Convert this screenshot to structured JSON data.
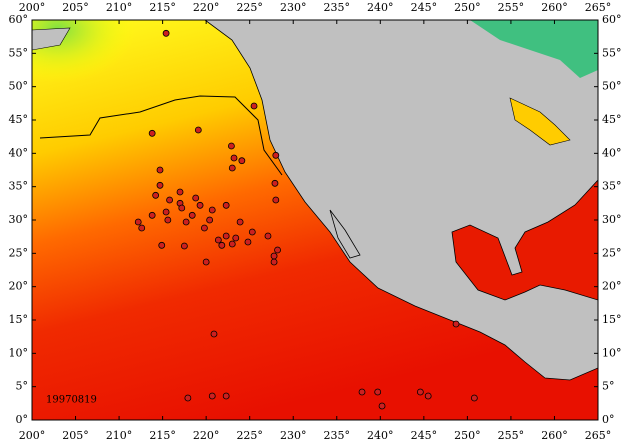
{
  "chart_data": {
    "type": "scatter",
    "label": "19970819",
    "xlim": [
      200,
      265
    ],
    "ylim": [
      0,
      60
    ],
    "xticks": [
      {
        "value": 200,
        "label": "200°"
      },
      {
        "value": 205,
        "label": "205°"
      },
      {
        "value": 210,
        "label": "210°"
      },
      {
        "value": 215,
        "label": "215°"
      },
      {
        "value": 220,
        "label": "220°"
      },
      {
        "value": 225,
        "label": "225°"
      },
      {
        "value": 230,
        "label": "230°"
      },
      {
        "value": 235,
        "label": "235°"
      },
      {
        "value": 240,
        "label": "240°"
      },
      {
        "value": 245,
        "label": "245°"
      },
      {
        "value": 250,
        "label": "250°"
      },
      {
        "value": 255,
        "label": "255°"
      },
      {
        "value": 260,
        "label": "260°"
      },
      {
        "value": 265,
        "label": "265°"
      }
    ],
    "yticks": [
      {
        "value": 0,
        "label": "0°"
      },
      {
        "value": 5,
        "label": "5°"
      },
      {
        "value": 10,
        "label": "10°"
      },
      {
        "value": 15,
        "label": "15°"
      },
      {
        "value": 20,
        "label": "20°"
      },
      {
        "value": 25,
        "label": "25°"
      },
      {
        "value": 30,
        "label": "30°"
      },
      {
        "value": 35,
        "label": "35°"
      },
      {
        "value": 40,
        "label": "40°"
      },
      {
        "value": 45,
        "label": "45°"
      },
      {
        "value": 50,
        "label": "50°"
      },
      {
        "value": 55,
        "label": "55°"
      },
      {
        "value": 60,
        "label": "60°"
      }
    ],
    "color": "#cc2020",
    "x": [
      215.4,
      213.8,
      219.1,
      225.5,
      222.9,
      223.2,
      224.1,
      228.0,
      223.0,
      227.9,
      214.7,
      214.7,
      217.0,
      214.2,
      215.8,
      217.0,
      218.8,
      219.3,
      222.3,
      212.2,
      213.8,
      215.4,
      217.2,
      218.4,
      220.7,
      220.4,
      223.9,
      228.0,
      212.6,
      215.6,
      217.7,
      219.8,
      221.4,
      222.3,
      223.4,
      224.8,
      225.3,
      227.1,
      228.2,
      227.8,
      227.8,
      214.9,
      217.5,
      220.0,
      221.8,
      223.0,
      220.9,
      217.9,
      220.7,
      222.3,
      237.9,
      239.7,
      240.2,
      244.6,
      245.5,
      250.8,
      248.7
    ],
    "values": [
      58.0,
      43.0,
      43.5,
      47.1,
      41.1,
      39.3,
      38.9,
      39.7,
      37.8,
      35.5,
      37.5,
      35.2,
      34.2,
      33.7,
      33.0,
      32.5,
      33.3,
      32.2,
      32.2,
      29.7,
      30.7,
      31.2,
      31.8,
      30.7,
      31.5,
      30.0,
      29.7,
      33.0,
      28.8,
      30.0,
      29.7,
      28.8,
      27.0,
      27.6,
      27.3,
      26.7,
      28.2,
      27.6,
      25.5,
      24.6,
      23.7,
      26.2,
      26.1,
      23.7,
      26.2,
      26.4,
      12.9,
      3.3,
      3.6,
      3.6,
      4.2,
      4.2,
      2.1,
      4.2,
      3.6,
      3.3,
      14.4
    ]
  }
}
